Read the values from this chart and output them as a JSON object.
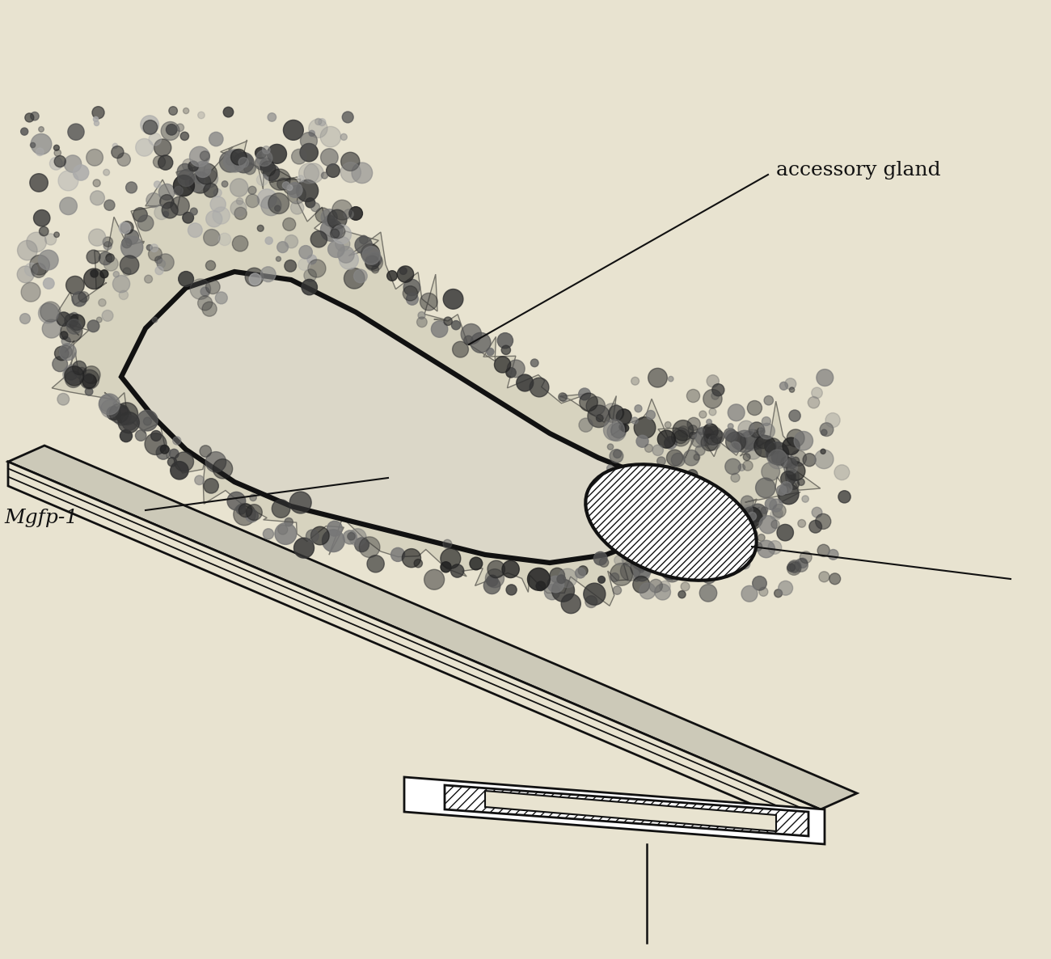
{
  "bg_color": "#e8e3d0",
  "line_color": "#111111",
  "label_accessory_gland": "accessory gland",
  "label_mgfp1": "Mgfp-1",
  "label_fontsize": 18,
  "figsize": [
    13.0,
    11.86
  ],
  "dpi": 100
}
